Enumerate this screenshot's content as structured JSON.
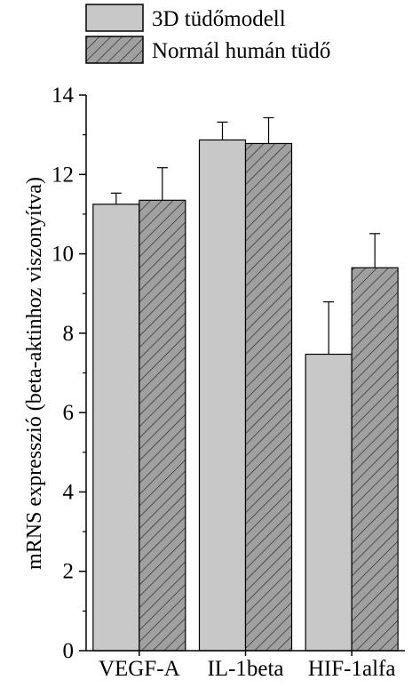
{
  "chart_data": {
    "type": "bar",
    "title": "",
    "xlabel": "",
    "ylabel": "mRNS expresszió (beta-aktinhoz viszonyítva)",
    "ylim": [
      0,
      14
    ],
    "yticks": [
      0,
      2,
      4,
      6,
      8,
      10,
      12,
      14
    ],
    "grid": false,
    "legend_position": "top",
    "categories": [
      "VEGF-A",
      "IL-1beta",
      "HIF-1alfa"
    ],
    "series": [
      {
        "name": "3D tüdőmodell",
        "values": [
          11.25,
          12.87,
          7.47
        ],
        "errors": [
          0.28,
          0.45,
          1.32
        ],
        "fill": "#c8c8c8",
        "pattern": "solid"
      },
      {
        "name": "Normál humán tüdő",
        "values": [
          11.35,
          12.78,
          9.65
        ],
        "errors": [
          0.82,
          0.65,
          0.86
        ],
        "fill": "#9a9a9a",
        "pattern": "hatched"
      }
    ]
  }
}
